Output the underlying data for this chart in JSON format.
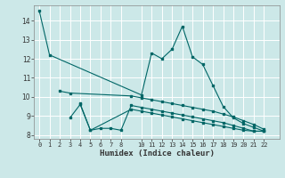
{
  "xlabel": "Humidex (Indice chaleur)",
  "background_color": "#cce8e8",
  "grid_color": "#b0d8d8",
  "line_color": "#006666",
  "xlim": [
    -0.5,
    23.5
  ],
  "ylim": [
    7.8,
    14.8
  ],
  "yticks": [
    8,
    9,
    10,
    11,
    12,
    13,
    14
  ],
  "s1_x": [
    0,
    1,
    10,
    11,
    12,
    13,
    14,
    15,
    16,
    17,
    18,
    19,
    20,
    21,
    22
  ],
  "s1_y": [
    14.5,
    12.2,
    10.1,
    12.3,
    12.0,
    12.5,
    13.7,
    12.1,
    11.7,
    10.6,
    9.5,
    8.9,
    8.6,
    8.4,
    8.2
  ],
  "s2_x": [
    2,
    3,
    9,
    10,
    11,
    12,
    13,
    14,
    15,
    16,
    17,
    18,
    19,
    20,
    21,
    22
  ],
  "s2_y": [
    10.3,
    10.2,
    10.05,
    9.95,
    9.85,
    9.75,
    9.65,
    9.55,
    9.45,
    9.35,
    9.25,
    9.1,
    8.95,
    8.75,
    8.55,
    8.3
  ],
  "s3_x": [
    3,
    4,
    5,
    6,
    7,
    8,
    9,
    10,
    11,
    12,
    13,
    14,
    15,
    16,
    17,
    18,
    19,
    20,
    21,
    22
  ],
  "s3_y": [
    8.9,
    9.6,
    8.25,
    8.35,
    8.35,
    8.25,
    9.55,
    9.45,
    9.35,
    9.25,
    9.15,
    9.05,
    8.95,
    8.85,
    8.75,
    8.65,
    8.5,
    8.35,
    8.2,
    8.2
  ],
  "s4_x": [
    4,
    5,
    9,
    10,
    11,
    12,
    13,
    14,
    15,
    16,
    17,
    18,
    19,
    20,
    21,
    22
  ],
  "s4_y": [
    9.65,
    8.25,
    9.35,
    9.25,
    9.15,
    9.05,
    8.95,
    8.85,
    8.75,
    8.65,
    8.55,
    8.45,
    8.35,
    8.25,
    8.2,
    8.2
  ]
}
